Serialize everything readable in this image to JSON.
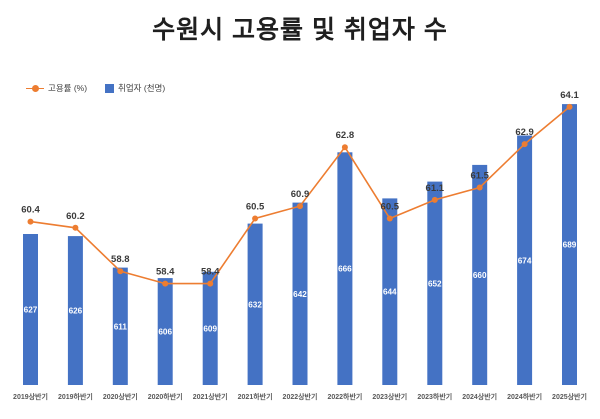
{
  "title": "수원시 고용률 및 취업자 수",
  "legend": {
    "line_label": "고용률 (%)",
    "bar_label": "취업자 (천명)"
  },
  "colors": {
    "line": "#ED7D31",
    "bar": "#4472C4",
    "title": "#1f1f1f",
    "line_label": "#3b3b3b",
    "bar_label": "#ffffff",
    "axis_label": "#595959"
  },
  "chart_data": {
    "type": "bar+line combo",
    "title": "수원시 고용률 및 취업자 수",
    "categories": [
      "2019상반기",
      "2019하반기",
      "2020상반기",
      "2020하반기",
      "2021상반기",
      "2021하반기",
      "2022상반기",
      "2022하반기",
      "2023상반기",
      "2023하반기",
      "2024상반기",
      "2024하반기",
      "2025상반기"
    ],
    "series": [
      {
        "name": "고용률 (%)",
        "type": "line",
        "values": [
          60.4,
          60.2,
          58.8,
          58.4,
          58.4,
          60.5,
          60.9,
          62.8,
          60.5,
          61.1,
          61.5,
          62.9,
          64.1
        ]
      },
      {
        "name": "취업자 (천명)",
        "type": "bar",
        "values": [
          627,
          626,
          611,
          606,
          609,
          632,
          642,
          666,
          644,
          652,
          660,
          674,
          689
        ]
      }
    ],
    "legend_position": "top-left",
    "grid": false,
    "axes_visible": false,
    "data_labels": true,
    "bar_axis_range": [
      555,
      700
    ],
    "line_axis_range": [
      56,
      66
    ]
  }
}
